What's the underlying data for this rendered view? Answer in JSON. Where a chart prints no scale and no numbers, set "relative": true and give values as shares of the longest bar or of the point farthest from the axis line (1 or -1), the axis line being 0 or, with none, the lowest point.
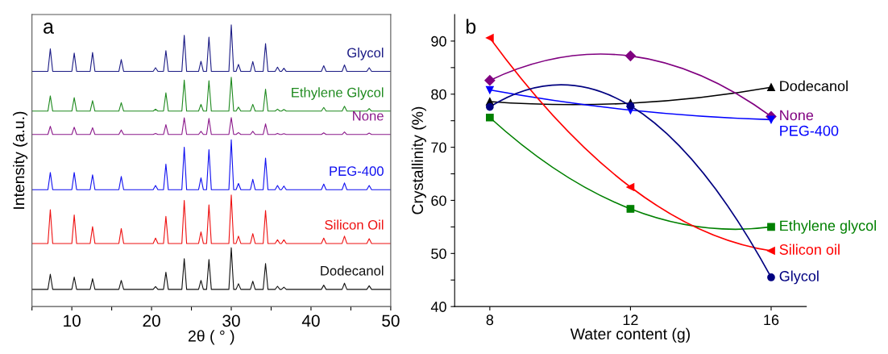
{
  "chart_data": [
    {
      "type": "line",
      "relative": true,
      "annotations": [
        "a"
      ],
      "xlabel": "2θ ( ° )",
      "ylabel": "Intensity (a.u.)",
      "xlim": [
        5,
        50
      ],
      "xticks": [
        {
          "value": 5,
          "label": null
        },
        10,
        {
          "value": 15,
          "label": null
        },
        20,
        {
          "value": 25,
          "label": null
        },
        30,
        {
          "value": 35,
          "label": null
        },
        40,
        {
          "value": 45,
          "label": null
        },
        50
      ],
      "tick_labels": "x",
      "grid": false,
      "legend": false,
      "marker": "none",
      "line_style": "solid",
      "x": [
        5,
        7.0,
        7.3,
        7.6,
        10.0,
        10.3,
        10.6,
        12.3,
        12.6,
        12.9,
        15.9,
        16.2,
        16.5,
        20.2,
        20.5,
        20.8,
        21.5,
        21.8,
        22.1,
        23.8,
        24.1,
        24.4,
        25.9,
        26.2,
        26.5,
        26.9,
        27.2,
        27.5,
        29.7,
        30.0,
        30.3,
        30.6,
        30.9,
        31.2,
        32.4,
        32.7,
        33.0,
        34.0,
        34.3,
        34.6,
        35.5,
        35.8,
        36.1,
        36.3,
        36.6,
        36.9,
        41.3,
        41.6,
        41.9,
        43.9,
        44.2,
        44.5,
        47.0,
        47.3,
        47.6,
        50
      ],
      "series": [
        {
          "name": "Glycol",
          "color": "#1b1b85",
          "values": [
            0.835,
            0.835,
            0.915,
            0.835,
            0.835,
            0.9,
            0.835,
            0.835,
            0.902,
            0.835,
            0.835,
            0.877,
            0.835,
            0.835,
            0.848,
            0.835,
            0.835,
            0.909,
            0.835,
            0.835,
            0.963,
            0.835,
            0.835,
            0.871,
            0.835,
            0.835,
            0.957,
            0.835,
            0.835,
            1.0,
            0.835,
            0.835,
            0.86,
            0.835,
            0.835,
            0.87,
            0.835,
            0.835,
            0.934,
            0.835,
            0.835,
            0.85,
            0.835,
            0.835,
            0.846,
            0.835,
            0.835,
            0.855,
            0.835,
            0.835,
            0.858,
            0.835,
            0.835,
            0.848,
            0.835,
            0.835
          ]
        },
        {
          "name": "Ethylene Glycol",
          "color": "#1f8a1f",
          "values": [
            0.694,
            0.694,
            0.748,
            0.694,
            0.694,
            0.742,
            0.694,
            0.694,
            0.731,
            0.694,
            0.694,
            0.724,
            0.694,
            0.694,
            0.701,
            0.694,
            0.694,
            0.759,
            0.694,
            0.694,
            0.804,
            0.694,
            0.694,
            0.718,
            0.694,
            0.694,
            0.802,
            0.694,
            0.694,
            0.814,
            0.694,
            0.694,
            0.708,
            0.694,
            0.694,
            0.718,
            0.694,
            0.694,
            0.772,
            0.694,
            0.694,
            0.701,
            0.694,
            0.694,
            0.7,
            0.694,
            0.694,
            0.707,
            0.694,
            0.694,
            0.711,
            0.694,
            0.694,
            0.703,
            0.694,
            0.694
          ]
        },
        {
          "name": "None",
          "color": "#8b1a8b",
          "values": [
            0.611,
            0.611,
            0.64,
            0.611,
            0.611,
            0.637,
            0.611,
            0.611,
            0.635,
            0.611,
            0.611,
            0.627,
            0.611,
            0.611,
            0.615,
            0.611,
            0.611,
            0.646,
            0.611,
            0.611,
            0.67,
            0.611,
            0.611,
            0.622,
            0.611,
            0.611,
            0.668,
            0.611,
            0.611,
            0.671,
            0.611,
            0.611,
            0.618,
            0.611,
            0.611,
            0.622,
            0.611,
            0.611,
            0.649,
            0.611,
            0.611,
            0.615,
            0.611,
            0.611,
            0.614,
            0.611,
            0.611,
            0.617,
            0.611,
            0.611,
            0.62,
            0.611,
            0.611,
            0.616,
            0.611,
            0.611
          ]
        },
        {
          "name": "PEG-400",
          "color": "#1010f0",
          "values": [
            0.415,
            0.415,
            0.476,
            0.415,
            0.415,
            0.476,
            0.415,
            0.415,
            0.468,
            0.415,
            0.415,
            0.462,
            0.415,
            0.415,
            0.43,
            0.415,
            0.415,
            0.506,
            0.415,
            0.415,
            0.566,
            0.415,
            0.415,
            0.457,
            0.415,
            0.415,
            0.557,
            0.415,
            0.415,
            0.592,
            0.415,
            0.415,
            0.437,
            0.415,
            0.415,
            0.452,
            0.415,
            0.415,
            0.527,
            0.415,
            0.415,
            0.43,
            0.415,
            0.415,
            0.428,
            0.415,
            0.415,
            0.435,
            0.415,
            0.415,
            0.439,
            0.415,
            0.415,
            0.43,
            0.415,
            0.415
          ]
        },
        {
          "name": "Silicon Oil",
          "color": "#ee1111",
          "values": [
            0.224,
            0.224,
            0.344,
            0.224,
            0.224,
            0.325,
            0.224,
            0.224,
            0.284,
            0.224,
            0.224,
            0.277,
            0.224,
            0.224,
            0.243,
            0.224,
            0.224,
            0.32,
            0.224,
            0.224,
            0.377,
            0.224,
            0.224,
            0.265,
            0.224,
            0.224,
            0.361,
            0.224,
            0.224,
            0.396,
            0.224,
            0.224,
            0.25,
            0.224,
            0.224,
            0.259,
            0.224,
            0.224,
            0.341,
            0.224,
            0.224,
            0.237,
            0.224,
            0.224,
            0.237,
            0.224,
            0.224,
            0.243,
            0.224,
            0.224,
            0.25,
            0.224,
            0.224,
            0.241,
            0.224,
            0.224
          ]
        },
        {
          "name": "Dodecanol",
          "color": "#111111",
          "values": [
            0.061,
            0.061,
            0.115,
            0.061,
            0.061,
            0.105,
            0.061,
            0.061,
            0.099,
            0.061,
            0.061,
            0.093,
            0.061,
            0.061,
            0.071,
            0.061,
            0.061,
            0.122,
            0.061,
            0.061,
            0.17,
            0.061,
            0.061,
            0.093,
            0.061,
            0.061,
            0.167,
            0.061,
            0.061,
            0.209,
            0.061,
            0.061,
            0.081,
            0.061,
            0.061,
            0.09,
            0.061,
            0.061,
            0.153,
            0.061,
            0.061,
            0.072,
            0.061,
            0.061,
            0.069,
            0.061,
            0.061,
            0.076,
            0.061,
            0.061,
            0.083,
            0.061,
            0.061,
            0.074,
            0.061,
            0.061
          ]
        }
      ]
    },
    {
      "type": "line",
      "annotations": [
        "b"
      ],
      "xlabel": "Water content (g)",
      "ylabel": "Crystallinity (%)",
      "x": [
        8,
        12,
        16
      ],
      "xlim": [
        7,
        17
      ],
      "xticks": [
        8,
        12,
        16
      ],
      "ylim": [
        40,
        95
      ],
      "yticks": [
        40,
        {
          "value": 45,
          "label": null
        },
        50,
        {
          "value": 55,
          "label": null
        },
        60,
        {
          "value": 65,
          "label": null
        },
        70,
        {
          "value": 75,
          "label": null
        },
        80,
        {
          "value": 85,
          "label": null
        },
        90
      ],
      "grid": false,
      "legend": false,
      "line_style": "solid",
      "series": [
        {
          "name": "Dodecanol",
          "color": "#000000",
          "marker": "triangle",
          "values": [
            78.6,
            78.3,
            81.3
          ]
        },
        {
          "name": "None",
          "color": "#800080",
          "marker": "diamond",
          "values": [
            82.6,
            87.2,
            75.8
          ]
        },
        {
          "name": "PEG-400",
          "color": "#0000ff",
          "marker": "triangle_down",
          "values": [
            80.8,
            77.0,
            75.2
          ]
        },
        {
          "name": "Ethylene glycol",
          "color": "#008000",
          "marker": "square",
          "values": [
            75.6,
            58.4,
            55.0
          ]
        },
        {
          "name": "Silicon oil",
          "color": "#ff0000",
          "marker": "triangle_left",
          "values": [
            90.6,
            62.5,
            50.5
          ]
        },
        {
          "name": "Glycol",
          "color": "#000080",
          "marker": "circle",
          "values": [
            77.6,
            77.8,
            45.5
          ]
        }
      ]
    }
  ]
}
